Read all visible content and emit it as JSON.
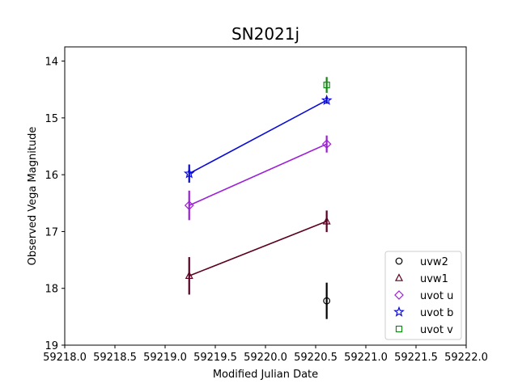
{
  "chart_data": {
    "type": "scatter",
    "title": "SN2021j",
    "xlabel": "Modified Julian Date",
    "ylabel": "Observed Vega Magnitude",
    "xlim": [
      59218.0,
      59222.0
    ],
    "ylim": [
      19,
      13.75
    ],
    "y_inverted": true,
    "xticks": [
      "59218.0",
      "59218.5",
      "59219.0",
      "59219.5",
      "59220.0",
      "59220.5",
      "59221.0",
      "59221.5",
      "59222.0"
    ],
    "xtick_values": [
      59218.0,
      59218.5,
      59219.0,
      59219.5,
      59220.0,
      59220.5,
      59221.0,
      59221.5,
      59222.0
    ],
    "yticks": [
      "14",
      "15",
      "16",
      "17",
      "18",
      "19"
    ],
    "ytick_values": [
      14,
      15,
      16,
      17,
      18,
      19
    ],
    "grid": false,
    "legend_position": "lower-right",
    "series": [
      {
        "name": "uvw2",
        "marker": "circle",
        "color": "#000000",
        "connected": false,
        "points": [
          {
            "x": 59220.61,
            "y": 18.22,
            "err": 0.32
          }
        ]
      },
      {
        "name": "uvw1",
        "marker": "triangle",
        "color": "#5c0022",
        "connected": true,
        "points": [
          {
            "x": 59219.24,
            "y": 17.78,
            "err": 0.33
          },
          {
            "x": 59220.61,
            "y": 16.82,
            "err": 0.19
          }
        ]
      },
      {
        "name": "uvot u",
        "marker": "diamond",
        "color": "#9b1fd6",
        "connected": true,
        "points": [
          {
            "x": 59219.24,
            "y": 16.54,
            "err": 0.26
          },
          {
            "x": 59220.61,
            "y": 15.46,
            "err": 0.15
          }
        ]
      },
      {
        "name": "uvot b",
        "marker": "star",
        "color": "#0a0ad8",
        "connected": true,
        "points": [
          {
            "x": 59219.24,
            "y": 15.98,
            "err": 0.16
          },
          {
            "x": 59220.61,
            "y": 14.69,
            "err": 0.06
          }
        ]
      },
      {
        "name": "uvot v",
        "marker": "square",
        "color": "#118a11",
        "connected": false,
        "points": [
          {
            "x": 59220.61,
            "y": 14.42,
            "err": 0.14
          }
        ]
      }
    ]
  }
}
